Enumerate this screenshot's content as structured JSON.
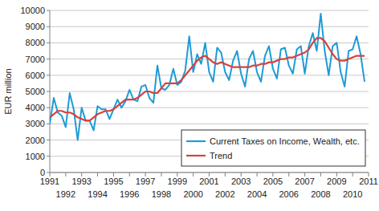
{
  "chart_data": {
    "type": "line",
    "y_label": "EUR million",
    "x": [
      1991,
      1991.25,
      1991.5,
      1991.75,
      1992,
      1992.25,
      1992.5,
      1992.75,
      1993,
      1993.25,
      1993.5,
      1993.75,
      1994,
      1994.25,
      1994.5,
      1994.75,
      1995,
      1995.25,
      1995.5,
      1995.75,
      1996,
      1996.25,
      1996.5,
      1996.75,
      1997,
      1997.25,
      1997.5,
      1997.75,
      1998,
      1998.25,
      1998.5,
      1998.75,
      1999,
      1999.25,
      1999.5,
      1999.75,
      2000,
      2000.25,
      2000.5,
      2000.75,
      2001,
      2001.25,
      2001.5,
      2001.75,
      2002,
      2002.25,
      2002.5,
      2002.75,
      2003,
      2003.25,
      2003.5,
      2003.75,
      2004,
      2004.25,
      2004.5,
      2004.75,
      2005,
      2005.25,
      2005.5,
      2005.75,
      2006,
      2006.25,
      2006.5,
      2006.75,
      2007,
      2007.25,
      2007.5,
      2007.75,
      2008,
      2008.25,
      2008.5,
      2008.75,
      2009,
      2009.25,
      2009.5,
      2009.75,
      2010,
      2010.25,
      2010.5,
      2010.75
    ],
    "series": [
      {
        "name": "Current Taxes on Income, Wealth, etc.",
        "color": "#1e9bd7",
        "values": [
          3000,
          4600,
          3700,
          3500,
          2800,
          4900,
          3900,
          2000,
          4000,
          3200,
          3200,
          2600,
          4100,
          3900,
          3900,
          3300,
          3900,
          4500,
          4000,
          4400,
          5100,
          4500,
          4400,
          5300,
          5400,
          4600,
          4300,
          6600,
          5200,
          5100,
          5400,
          6400,
          5400,
          5600,
          6300,
          8400,
          6200,
          7300,
          6700,
          8000,
          6200,
          5600,
          7700,
          7400,
          6200,
          5700,
          6900,
          7500,
          6100,
          5300,
          7000,
          7500,
          6200,
          5600,
          7200,
          7800,
          6400,
          5800,
          7600,
          7700,
          6600,
          6100,
          7600,
          7800,
          6100,
          7800,
          8600,
          7500,
          9800,
          7500,
          6000,
          7800,
          8000,
          6200,
          5300,
          7500,
          7600,
          8400,
          7300,
          5600
        ]
      },
      {
        "name": "Trend",
        "color": "#d7413b",
        "values": [
          3400,
          3600,
          3800,
          3800,
          3700,
          3700,
          3600,
          3400,
          3300,
          3200,
          3200,
          3400,
          3600,
          3700,
          3800,
          3800,
          3900,
          4100,
          4300,
          4500,
          4500,
          4500,
          4600,
          4800,
          5000,
          5000,
          4900,
          4900,
          5200,
          5500,
          5500,
          5500,
          5500,
          5700,
          6000,
          6300,
          6600,
          6900,
          7100,
          7200,
          7000,
          6800,
          6700,
          6800,
          6700,
          6600,
          6500,
          6500,
          6500,
          6500,
          6500,
          6600,
          6600,
          6700,
          6700,
          6800,
          6800,
          6900,
          7000,
          7000,
          7100,
          7100,
          7200,
          7300,
          7400,
          7600,
          8000,
          8300,
          8300,
          8100,
          7700,
          7300,
          7000,
          6900,
          6900,
          7000,
          7100,
          7200,
          7200,
          7200
        ]
      }
    ],
    "xlim": [
      1991,
      2011
    ],
    "xticks": [
      1991,
      1992,
      1993,
      1994,
      1995,
      1996,
      1997,
      1998,
      1999,
      2000,
      2001,
      2002,
      2003,
      2004,
      2005,
      2006,
      2007,
      2008,
      2009,
      2010,
      2011
    ],
    "ylim": [
      0,
      10000
    ],
    "yticks": [
      0,
      1000,
      2000,
      3000,
      4000,
      5000,
      6000,
      7000,
      8000,
      9000,
      10000
    ],
    "grid": true,
    "legend": "lower right"
  }
}
